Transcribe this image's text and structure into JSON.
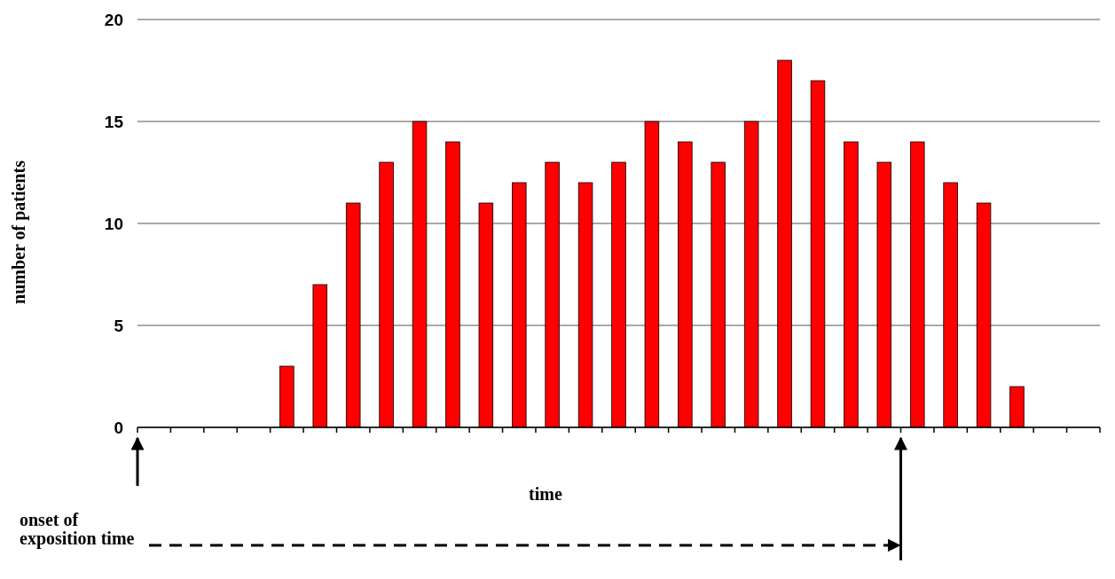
{
  "chart_data": {
    "type": "bar",
    "xlabel": "time",
    "ylabel": "number of patients",
    "categories": [
      null,
      null,
      null,
      null,
      null,
      null,
      null,
      null,
      null,
      null,
      null,
      null,
      null,
      null,
      null,
      null,
      null,
      null,
      null,
      null,
      null,
      null,
      null,
      null,
      null,
      null,
      null,
      null,
      null
    ],
    "values": [
      null,
      null,
      null,
      null,
      3,
      7,
      11,
      13,
      15,
      14,
      11,
      12,
      13,
      12,
      13,
      15,
      14,
      13,
      15,
      18,
      17,
      14,
      13,
      14,
      12,
      11,
      2,
      null,
      null
    ],
    "color": "#ff0000",
    "ylim": [
      0,
      20
    ],
    "yticks": [
      0,
      5,
      10,
      15,
      20
    ],
    "grid": "y",
    "annotations": [
      "onset of exposition time"
    ]
  }
}
